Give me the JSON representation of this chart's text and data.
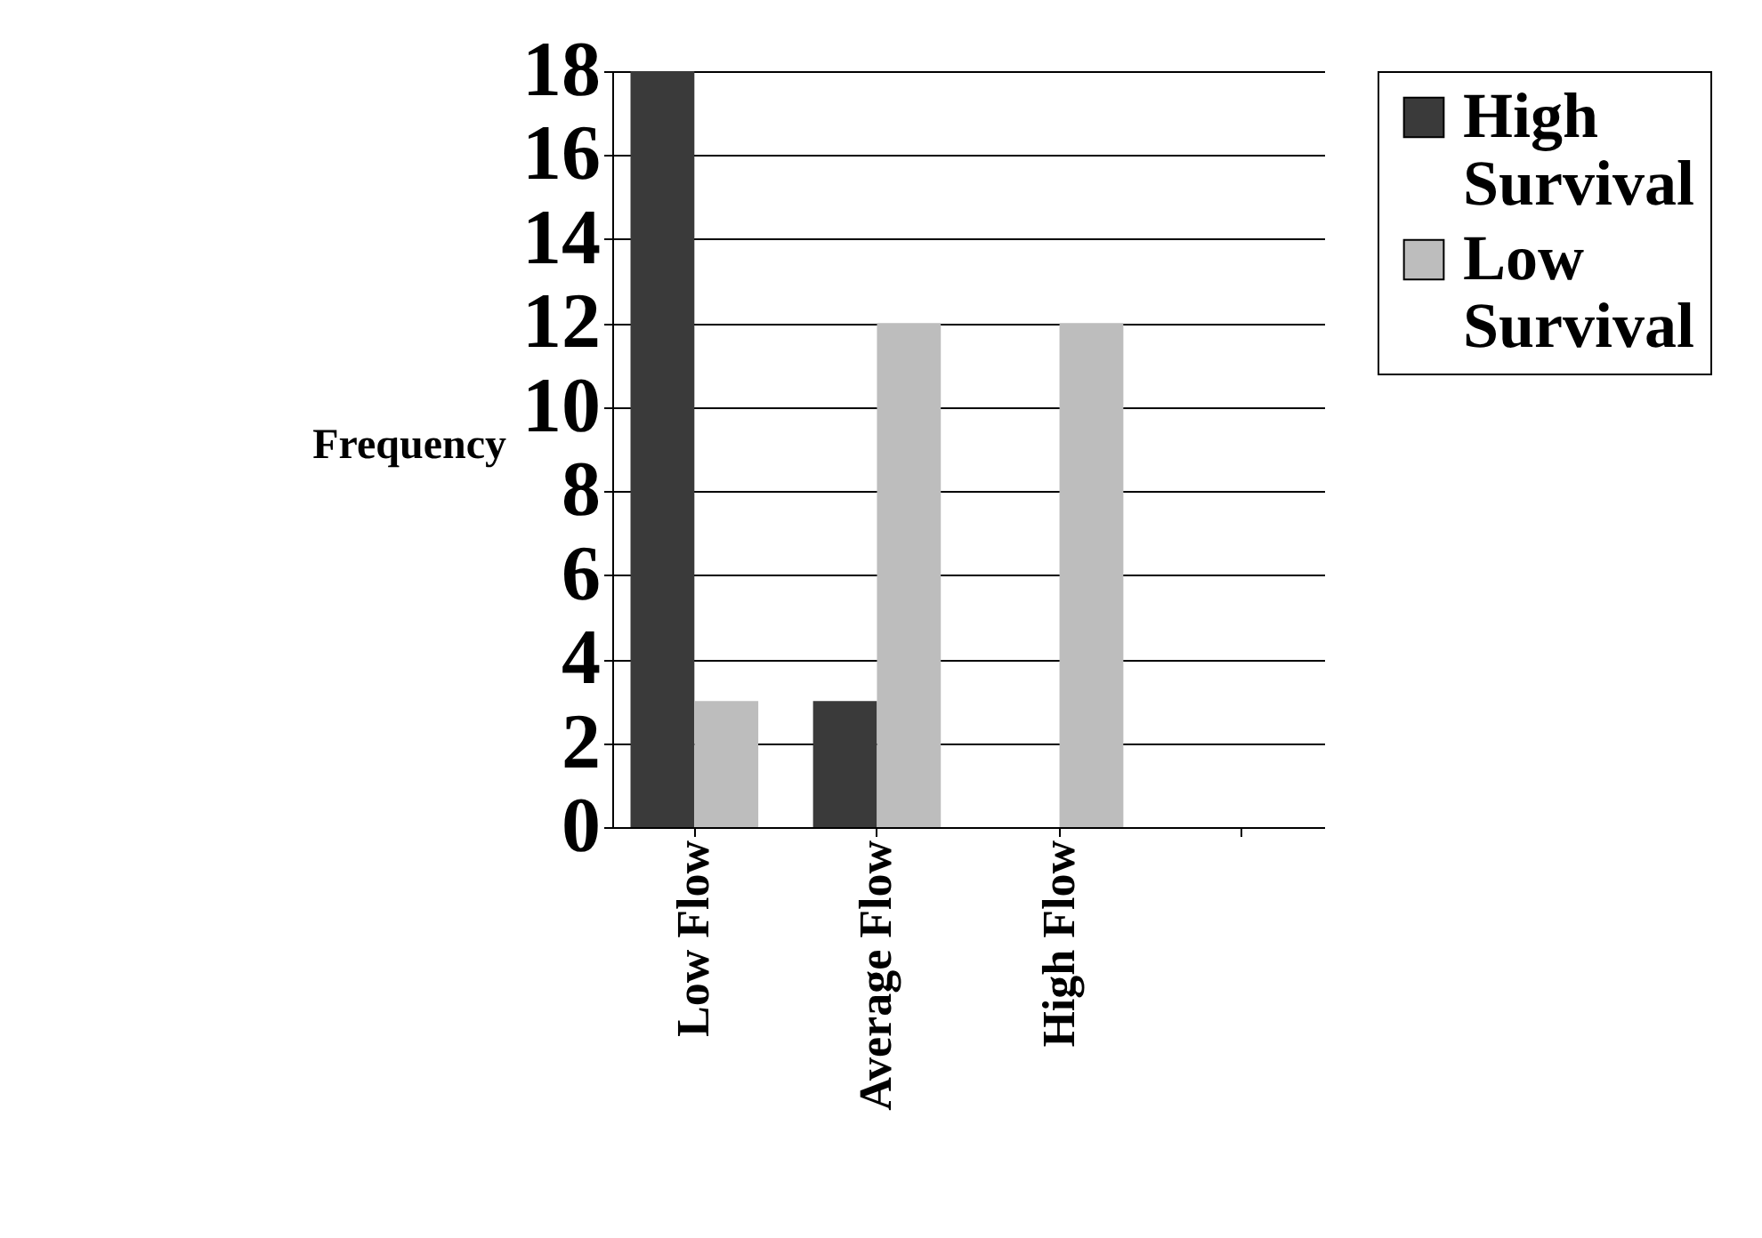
{
  "chart_data": {
    "type": "bar",
    "ylabel": "Frequency",
    "categories": [
      "Low Flow",
      "Average Flow",
      "High Flow",
      null
    ],
    "series": [
      {
        "name": "High Survival",
        "color": "#3a3a3a",
        "values": [
          18,
          3,
          0,
          0
        ]
      },
      {
        "name": "Low Survival",
        "color": "#bdbdbd",
        "values": [
          3,
          12,
          12,
          0
        ]
      }
    ],
    "ylim": [
      0,
      18
    ],
    "yticks": [
      0,
      2,
      4,
      6,
      8,
      10,
      12,
      14,
      16,
      18
    ],
    "grid": "y",
    "legend": "right"
  }
}
